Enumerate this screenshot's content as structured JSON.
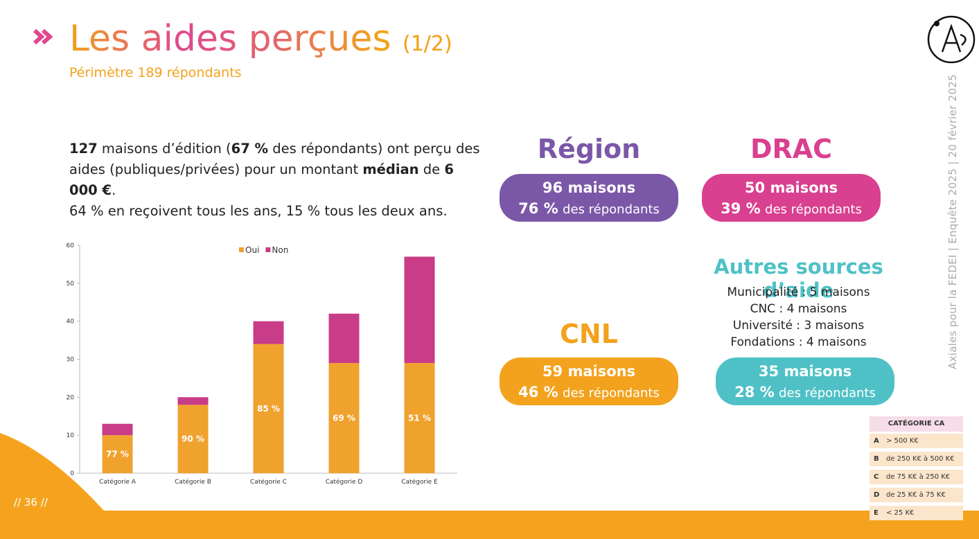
{
  "header": {
    "title": "Les aides perçues",
    "part": "(1/2)",
    "subtitle": "Périmètre 189 répondants"
  },
  "intro": [
    "127",
    " maisons d’édition (",
    "67 %",
    " des répondants) ont perçu des aides (publiques/privées) pour un montant ",
    "médian",
    " de ",
    "6 000 €",
    ".",
    "64 % en reçoivent tous les ans, 15 % tous les deux ans."
  ],
  "cards": [
    {
      "title": "Région",
      "count": "96 maisons",
      "share": "76 %",
      "share_text": "des répondants"
    },
    {
      "title": "DRAC",
      "count": "50 maisons",
      "share": "39 %",
      "share_text": "des répondants"
    },
    {
      "title": "CNL",
      "count": "59 maisons",
      "share": "46 %",
      "share_text": "des répondants"
    }
  ],
  "other": {
    "title": "Autres sources d’aide",
    "items": [
      "Municipalité : 5 maisons",
      "CNC : 4 maisons",
      "Université : 3 maisons",
      "Fondations : 4 maisons"
    ],
    "count": "35 maisons",
    "share": "28 %",
    "share_text": "des répondants"
  },
  "side_note": "Axiales pour la FEDEI | Enquête 2025 | 20 février 2025",
  "page_number": "// 36 //",
  "ca_table": {
    "header": "CATÉGORIE CA",
    "rows": [
      [
        "A",
        "> 500 K€"
      ],
      [
        "B",
        "de 250 K€ à 500 K€"
      ],
      [
        "C",
        "de 75 K€ à 250 K€"
      ],
      [
        "D",
        "de 25 K€ à 75 K€"
      ],
      [
        "E",
        "< 25 K€"
      ]
    ]
  },
  "chart_data": {
    "type": "stacked_bar",
    "categories": [
      "Catégorie A",
      "Catégorie B",
      "Catégorie C",
      "Catégorie D",
      "Catégorie E"
    ],
    "series": [
      {
        "name": "Oui",
        "color": "#f0a22e",
        "values": [
          10,
          18,
          34,
          29,
          29
        ]
      },
      {
        "name": "Non",
        "color": "#c93c88",
        "values": [
          3,
          2,
          6,
          13,
          28
        ]
      }
    ],
    "annotations": [
      "77 %",
      "90 %",
      "85 %",
      "69 %",
      "51 %"
    ],
    "ylim": [
      0,
      60
    ],
    "yticks": [
      0,
      10,
      20,
      30,
      40,
      50,
      60
    ],
    "grid": false,
    "legend": "top"
  }
}
